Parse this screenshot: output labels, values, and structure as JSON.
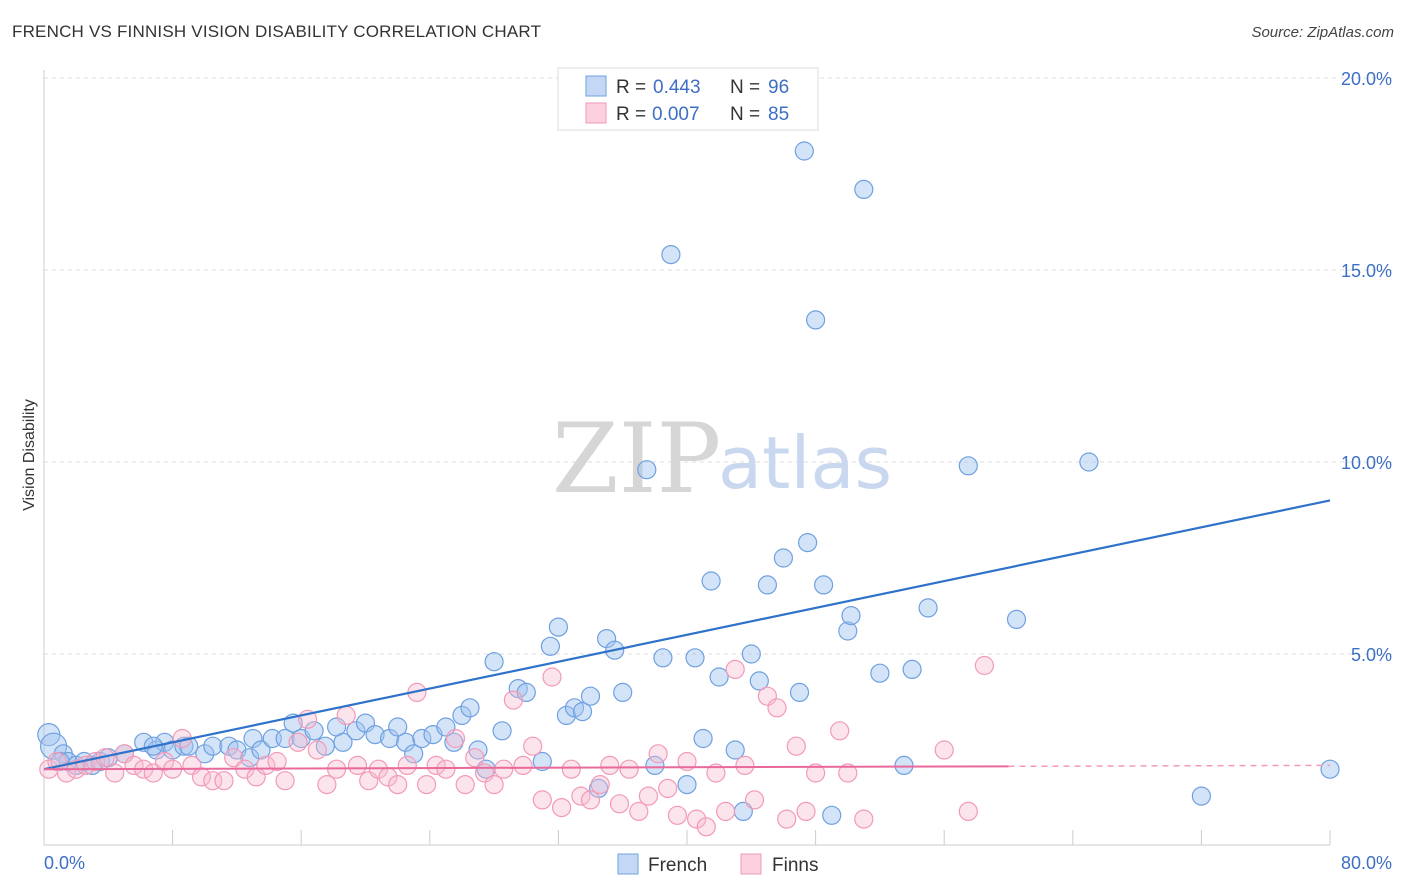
{
  "header": {
    "title": "FRENCH VS FINNISH VISION DISABILITY CORRELATION CHART",
    "source": "Source: ZipAtlas.com"
  },
  "watermark": {
    "zip": "ZIP",
    "atlas": "atlas"
  },
  "legend_top": [
    {
      "r_label": "R =",
      "r_value": "0.443",
      "n_label": "N =",
      "n_value": "96",
      "color": "#6fa0e0"
    },
    {
      "r_label": "R =",
      "r_value": "0.007",
      "n_label": "N =",
      "n_value": "85",
      "color": "#f29ab8"
    }
  ],
  "legend_bottom": [
    "French",
    "Finns"
  ],
  "chart_data": {
    "type": "scatter",
    "title": "FRENCH VS FINNISH VISION DISABILITY CORRELATION CHART",
    "ylabel": "Vision Disability",
    "xlabel": "",
    "xlim": [
      0,
      80
    ],
    "ylim": [
      0,
      21
    ],
    "x_tick_labels": [
      "0.0%",
      "80.0%"
    ],
    "y_ticks": [
      5,
      10,
      15,
      20
    ],
    "y_tick_labels": [
      "5.0%",
      "10.0%",
      "15.0%",
      "20.0%"
    ],
    "grid": "horizontal dashed",
    "legend": "top-center and bottom-center",
    "colors": {
      "french": "#6fa0e0",
      "french_line": "#2f72c9",
      "finns": "#f29ab8",
      "finns_line": "#e8699a"
    },
    "series": [
      {
        "name": "French",
        "r": 0.443,
        "n": 96,
        "trend": {
          "x": [
            0,
            80
          ],
          "y": [
            2.0,
            9.0
          ]
        },
        "points": [
          [
            0.3,
            2.9
          ],
          [
            0.6,
            2.6
          ],
          [
            1.2,
            2.4
          ],
          [
            1.5,
            2.2
          ],
          [
            2.0,
            2.1
          ],
          [
            2.5,
            2.2
          ],
          [
            3.0,
            2.1
          ],
          [
            3.5,
            2.2
          ],
          [
            4.0,
            2.3
          ],
          [
            5.0,
            2.4
          ],
          [
            6.2,
            2.7
          ],
          [
            7.0,
            2.5
          ],
          [
            7.5,
            2.7
          ],
          [
            8.0,
            2.5
          ],
          [
            8.7,
            2.6
          ],
          [
            9.0,
            2.6
          ],
          [
            10.0,
            2.4
          ],
          [
            10.5,
            2.6
          ],
          [
            11.5,
            2.6
          ],
          [
            12.0,
            2.5
          ],
          [
            12.8,
            2.3
          ],
          [
            13.0,
            2.8
          ],
          [
            13.5,
            2.5
          ],
          [
            14.2,
            2.8
          ],
          [
            15.0,
            2.8
          ],
          [
            15.5,
            3.2
          ],
          [
            16.0,
            2.8
          ],
          [
            16.8,
            3.0
          ],
          [
            17.5,
            2.6
          ],
          [
            18.2,
            3.1
          ],
          [
            18.6,
            2.7
          ],
          [
            19.4,
            3.0
          ],
          [
            20.0,
            3.2
          ],
          [
            20.6,
            2.9
          ],
          [
            21.5,
            2.8
          ],
          [
            22.0,
            3.1
          ],
          [
            22.5,
            2.7
          ],
          [
            23.0,
            2.4
          ],
          [
            23.5,
            2.8
          ],
          [
            24.2,
            2.9
          ],
          [
            25.0,
            3.1
          ],
          [
            25.5,
            2.7
          ],
          [
            26.0,
            3.4
          ],
          [
            26.5,
            3.6
          ],
          [
            27.0,
            2.5
          ],
          [
            27.5,
            2.0
          ],
          [
            28.0,
            4.8
          ],
          [
            28.5,
            3.0
          ],
          [
            29.5,
            4.1
          ],
          [
            30.0,
            4.0
          ],
          [
            31.0,
            2.2
          ],
          [
            31.5,
            5.2
          ],
          [
            32.0,
            5.7
          ],
          [
            32.5,
            3.4
          ],
          [
            33.0,
            3.6
          ],
          [
            33.5,
            3.5
          ],
          [
            34.0,
            3.9
          ],
          [
            34.5,
            1.5
          ],
          [
            35.0,
            5.4
          ],
          [
            35.5,
            5.1
          ],
          [
            36.0,
            4.0
          ],
          [
            37.5,
            9.8
          ],
          [
            38.0,
            2.1
          ],
          [
            38.5,
            4.9
          ],
          [
            39.0,
            15.4
          ],
          [
            40.0,
            1.6
          ],
          [
            40.5,
            4.9
          ],
          [
            41.0,
            2.8
          ],
          [
            41.5,
            6.9
          ],
          [
            42.0,
            4.4
          ],
          [
            43.0,
            2.5
          ],
          [
            43.5,
            0.9
          ],
          [
            44.0,
            5.0
          ],
          [
            44.5,
            4.3
          ],
          [
            45.0,
            6.8
          ],
          [
            46.0,
            7.5
          ],
          [
            47.0,
            4.0
          ],
          [
            47.5,
            7.9
          ],
          [
            47.3,
            18.1
          ],
          [
            48.0,
            13.7
          ],
          [
            48.5,
            6.8
          ],
          [
            49.0,
            0.8
          ],
          [
            50.0,
            5.6
          ],
          [
            50.2,
            6.0
          ],
          [
            51.0,
            17.1
          ],
          [
            52.0,
            4.5
          ],
          [
            53.5,
            2.1
          ],
          [
            54.0,
            4.6
          ],
          [
            55.0,
            6.2
          ],
          [
            57.5,
            9.9
          ],
          [
            60.5,
            5.9
          ],
          [
            65.0,
            10.0
          ],
          [
            72.0,
            1.3
          ],
          [
            80.0,
            2.0
          ],
          [
            1.0,
            2.2
          ],
          [
            6.8,
            2.6
          ]
        ]
      },
      {
        "name": "Finns",
        "r": 0.007,
        "n": 85,
        "trend": {
          "x": [
            0,
            80
          ],
          "y": [
            2.0,
            2.1
          ]
        },
        "points": [
          [
            0.3,
            2.0
          ],
          [
            0.8,
            2.2
          ],
          [
            1.4,
            1.9
          ],
          [
            2.0,
            2.0
          ],
          [
            2.6,
            2.1
          ],
          [
            3.2,
            2.2
          ],
          [
            3.8,
            2.3
          ],
          [
            4.4,
            1.9
          ],
          [
            5.0,
            2.4
          ],
          [
            5.6,
            2.1
          ],
          [
            6.2,
            2.0
          ],
          [
            6.8,
            1.9
          ],
          [
            7.5,
            2.2
          ],
          [
            8.0,
            2.0
          ],
          [
            8.6,
            2.8
          ],
          [
            9.2,
            2.1
          ],
          [
            9.8,
            1.8
          ],
          [
            10.5,
            1.7
          ],
          [
            11.2,
            1.7
          ],
          [
            11.8,
            2.3
          ],
          [
            12.5,
            2.0
          ],
          [
            13.2,
            1.8
          ],
          [
            13.8,
            2.1
          ],
          [
            14.5,
            2.2
          ],
          [
            15.0,
            1.7
          ],
          [
            15.8,
            2.7
          ],
          [
            16.4,
            3.3
          ],
          [
            17.0,
            2.5
          ],
          [
            17.6,
            1.6
          ],
          [
            18.2,
            2.0
          ],
          [
            18.8,
            3.4
          ],
          [
            19.5,
            2.1
          ],
          [
            20.2,
            1.7
          ],
          [
            20.8,
            2.0
          ],
          [
            21.4,
            1.8
          ],
          [
            22.0,
            1.6
          ],
          [
            22.6,
            2.1
          ],
          [
            23.2,
            4.0
          ],
          [
            23.8,
            1.6
          ],
          [
            24.4,
            2.1
          ],
          [
            25.0,
            2.0
          ],
          [
            25.6,
            2.8
          ],
          [
            26.2,
            1.6
          ],
          [
            26.8,
            2.3
          ],
          [
            27.4,
            1.9
          ],
          [
            28.0,
            1.6
          ],
          [
            28.6,
            2.0
          ],
          [
            29.2,
            3.8
          ],
          [
            29.8,
            2.1
          ],
          [
            30.4,
            2.6
          ],
          [
            31.0,
            1.2
          ],
          [
            31.6,
            4.4
          ],
          [
            32.2,
            1.0
          ],
          [
            32.8,
            2.0
          ],
          [
            33.4,
            1.3
          ],
          [
            34.0,
            1.2
          ],
          [
            34.6,
            1.6
          ],
          [
            35.2,
            2.1
          ],
          [
            35.8,
            1.1
          ],
          [
            36.4,
            2.0
          ],
          [
            37.0,
            0.9
          ],
          [
            37.6,
            1.3
          ],
          [
            38.2,
            2.4
          ],
          [
            38.8,
            1.5
          ],
          [
            39.4,
            0.8
          ],
          [
            40.0,
            2.2
          ],
          [
            40.6,
            0.7
          ],
          [
            41.2,
            0.5
          ],
          [
            41.8,
            1.9
          ],
          [
            42.4,
            0.9
          ],
          [
            43.0,
            4.6
          ],
          [
            43.6,
            2.1
          ],
          [
            44.2,
            1.2
          ],
          [
            45.0,
            3.9
          ],
          [
            45.6,
            3.6
          ],
          [
            46.2,
            0.7
          ],
          [
            46.8,
            2.6
          ],
          [
            47.4,
            0.9
          ],
          [
            48.0,
            1.9
          ],
          [
            49.5,
            3.0
          ],
          [
            50.0,
            1.9
          ],
          [
            51.0,
            0.7
          ],
          [
            56.0,
            2.5
          ],
          [
            57.5,
            0.9
          ],
          [
            58.5,
            4.7
          ]
        ]
      }
    ]
  }
}
